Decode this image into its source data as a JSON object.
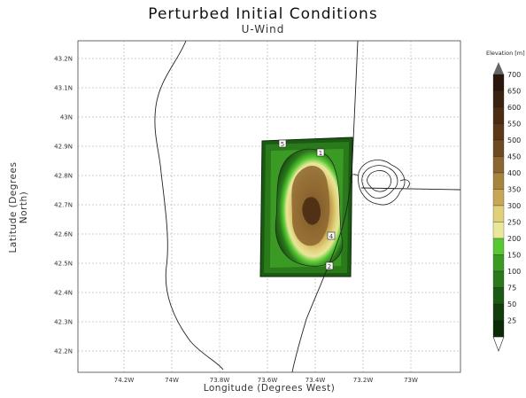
{
  "title": "Perturbed Initial Conditions",
  "subtitle": "U-Wind",
  "xlabel": "Longitude (Degrees West)",
  "ylabel": "Latitude (Degrees North)",
  "x_ticks": [
    "74.2W",
    "74W",
    "73.8W",
    "73.6W",
    "73.4W",
    "73.2W",
    "73W"
  ],
  "y_ticks": [
    "43.2N",
    "43.1N",
    "43N",
    "42.9N",
    "42.8N",
    "42.7N",
    "42.6N",
    "42.5N",
    "42.4N",
    "42.3N",
    "42.2N"
  ],
  "colorbar": {
    "title": "Elevation [m]",
    "levels": [
      "25",
      "50",
      "75",
      "100",
      "150",
      "200",
      "250",
      "300",
      "350",
      "400",
      "450",
      "500",
      "550",
      "600",
      "650",
      "700"
    ],
    "colors": [
      "#0b2a06",
      "#123d0c",
      "#1b5a12",
      "#2a7a1b",
      "#3b9a24",
      "#57c832",
      "#e9e79a",
      "#e1d07a",
      "#c7a755",
      "#a8833c",
      "#8c6530",
      "#6e4a22",
      "#5a3818",
      "#4a2c13",
      "#3a2210",
      "#2a170b"
    ]
  },
  "markers": [
    "5",
    "1",
    "4",
    "2"
  ]
}
